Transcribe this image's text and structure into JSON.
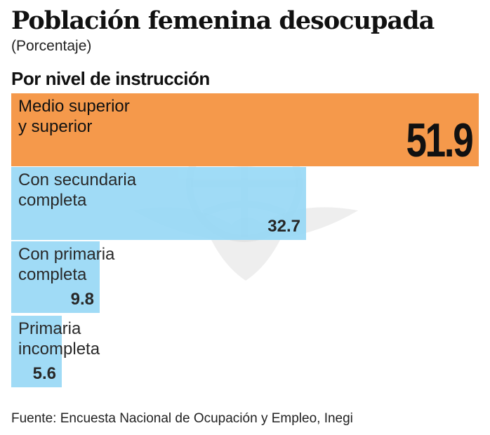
{
  "chart_data": {
    "type": "bar",
    "orientation": "horizontal",
    "title": "Población femenina desocupada",
    "subtitle": "(Porcentaje)",
    "section_label": "Por nivel de instrucción",
    "categories": [
      "Medio superior\ny superior",
      "Con secundaria\ncompleta",
      "Con primaria\ncompleta",
      "Primaria\nincompleta"
    ],
    "values": [
      51.9,
      32.7,
      9.8,
      5.6
    ],
    "value_labels": [
      "51.9",
      "32.7",
      "9.8",
      "5.6"
    ],
    "colors": [
      "#f5994b",
      "#96d8f6",
      "#96d8f6",
      "#96d8f6"
    ],
    "xlim": [
      0,
      51.9
    ],
    "source": "Fuente: Encuesta Nacional de Ocupación y Empleo, Inegi"
  }
}
